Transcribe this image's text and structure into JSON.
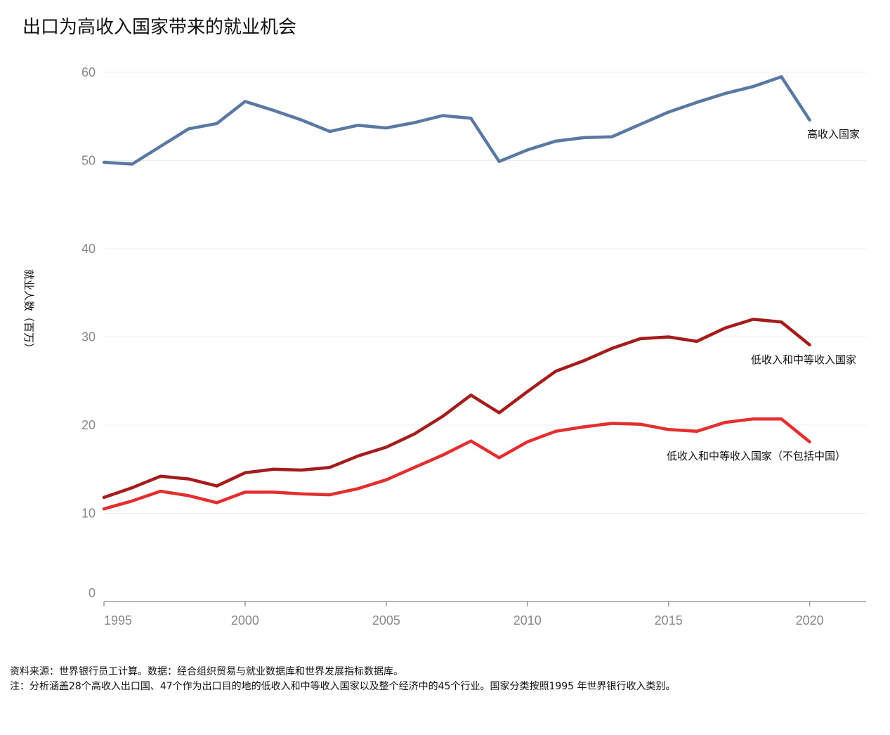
{
  "chart_data": {
    "type": "line",
    "title": "出口为高收入国家带来的就业机会",
    "ylabel": "就业人数（百万）",
    "xlim": [
      1995,
      2022
    ],
    "ylim": [
      0,
      60
    ],
    "x_ticks": [
      1995,
      2000,
      2005,
      2010,
      2015,
      2020
    ],
    "y_ticks": [
      0,
      10,
      20,
      30,
      40,
      50,
      60
    ],
    "grid": "horizontal",
    "x": [
      1995,
      1996,
      1997,
      1998,
      1999,
      2000,
      2001,
      2002,
      2003,
      2004,
      2005,
      2006,
      2007,
      2008,
      2009,
      2010,
      2011,
      2012,
      2013,
      2014,
      2015,
      2016,
      2017,
      2018,
      2019,
      2020
    ],
    "series": [
      {
        "name": "高收入国家",
        "color": "#5b78a3",
        "values": [
          49.8,
          49.6,
          51.6,
          53.6,
          54.2,
          56.7,
          55.7,
          54.6,
          53.3,
          54.0,
          53.7,
          54.3,
          55.1,
          54.8,
          49.9,
          51.2,
          52.2,
          52.6,
          52.7,
          54.1,
          55.5,
          56.6,
          57.6,
          58.4,
          59.5,
          54.6
        ]
      },
      {
        "name": "低收入和中等收入国家",
        "color": "#a51c1c",
        "values": [
          11.8,
          12.9,
          14.2,
          13.9,
          13.1,
          14.6,
          15.0,
          14.9,
          15.2,
          16.5,
          17.5,
          19.0,
          21.0,
          23.4,
          21.4,
          23.8,
          26.1,
          27.3,
          28.7,
          29.8,
          30.0,
          29.5,
          31.0,
          32.0,
          31.7,
          29.1
        ]
      },
      {
        "name": "低收入和中等收入国家（不包括中国）",
        "color": "#e23030",
        "values": [
          10.5,
          11.4,
          12.5,
          12.0,
          11.2,
          12.4,
          12.4,
          12.2,
          12.1,
          12.8,
          13.8,
          15.2,
          16.6,
          18.2,
          16.3,
          18.1,
          19.3,
          19.8,
          20.2,
          20.1,
          19.5,
          19.3,
          20.3,
          20.7,
          20.7,
          18.1
        ]
      }
    ]
  },
  "notes": {
    "source": "资料来源：世界银行员工计算。数据：经合组织贸易与就业数据库和世界发展指标数据库。",
    "note": "注：分析涵盖28个高收入出口国、47个作为出口目的地的低收入和中等收入国家以及整个经济中的45个行业。国家分类按照1995 年世界银行收入类别。"
  }
}
